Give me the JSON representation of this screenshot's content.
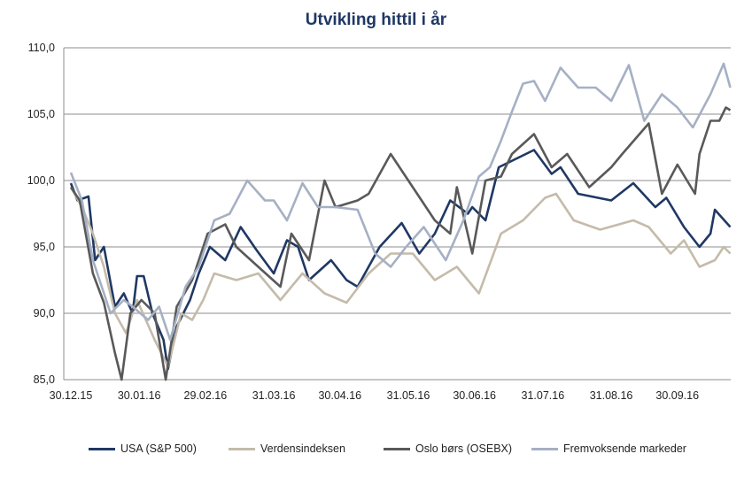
{
  "chart_data": {
    "type": "line",
    "title": "Utvikling hittil i år",
    "xlabel": "",
    "ylabel": "",
    "ylim": [
      85,
      110
    ],
    "yticks": [
      "85,0",
      "90,0",
      "95,0",
      "100,0",
      "105,0",
      "110,0"
    ],
    "ytick_values": [
      85,
      90,
      95,
      100,
      105,
      110
    ],
    "xlim_days": [
      0,
      299
    ],
    "xticks": [
      {
        "label": "30.12.15",
        "day": 0
      },
      {
        "label": "30.01.16",
        "day": 31
      },
      {
        "label": "29.02.16",
        "day": 61
      },
      {
        "label": "31.03.16",
        "day": 92
      },
      {
        "label": "30.04.16",
        "day": 122
      },
      {
        "label": "31.05.16",
        "day": 153
      },
      {
        "label": "30.06.16",
        "day": 183
      },
      {
        "label": "31.07.16",
        "day": 214
      },
      {
        "label": "31.08.16",
        "day": 245
      },
      {
        "label": "30.09.16",
        "day": 275
      }
    ],
    "grid": "horizontal",
    "legend_position": "bottom",
    "series": [
      {
        "name": "USA (S&P 500)",
        "color": "#1f3864",
        "x": [
          0,
          3,
          8,
          11,
          15,
          20,
          24,
          28,
          30,
          33,
          37,
          42,
          44,
          48,
          54,
          58,
          63,
          70,
          77,
          84,
          92,
          98,
          103,
          108,
          118,
          125,
          130,
          140,
          150,
          158,
          165,
          172,
          180,
          182,
          188,
          194,
          210,
          218,
          222,
          230,
          245,
          255,
          265,
          270,
          278,
          285,
          290,
          292,
          299
        ],
        "y": [
          99.8,
          98.5,
          98.8,
          94,
          95,
          90.5,
          91.5,
          90,
          92.8,
          92.8,
          90,
          88,
          85.8,
          89,
          91,
          93,
          95,
          94,
          96.5,
          94.8,
          93,
          95.5,
          95,
          92.5,
          94,
          92.5,
          92,
          95,
          96.8,
          94.5,
          96,
          98.5,
          97.5,
          98,
          97,
          101,
          102.3,
          100.5,
          101,
          99,
          98.5,
          99.8,
          98,
          98.7,
          96.5,
          95,
          96,
          97.8,
          96.5
        ]
      },
      {
        "name": "Verdensindeksen",
        "color": "#c4bbaa",
        "x": [
          0,
          5,
          10,
          15,
          20,
          25,
          30,
          38,
          44,
          50,
          55,
          60,
          65,
          75,
          85,
          95,
          105,
          115,
          125,
          135,
          145,
          155,
          165,
          175,
          185,
          195,
          205,
          215,
          220,
          228,
          240,
          255,
          262,
          272,
          278,
          285,
          292,
          296,
          299
        ],
        "y": [
          99.5,
          98,
          96,
          93.5,
          90,
          88.5,
          91,
          88,
          86,
          90,
          89.5,
          91,
          93,
          92.5,
          93,
          91,
          93,
          91.5,
          90.8,
          93,
          94.5,
          94.5,
          92.5,
          93.5,
          91.5,
          96,
          97,
          98.7,
          99,
          97,
          96.3,
          97,
          96.5,
          94.5,
          95.5,
          93.5,
          94,
          95,
          94.5
        ]
      },
      {
        "name": "Oslo børs (OSEBX)",
        "color": "#595959",
        "x": [
          0,
          4,
          10,
          15,
          20,
          23,
          27,
          32,
          38,
          43,
          48,
          55,
          62,
          70,
          75,
          85,
          95,
          100,
          108,
          115,
          120,
          130,
          135,
          145,
          155,
          165,
          172,
          175,
          182,
          188,
          195,
          200,
          210,
          218,
          225,
          235,
          245,
          250,
          262,
          268,
          275,
          283,
          285,
          290,
          294,
          297,
          299
        ],
        "y": [
          99.5,
          98.5,
          93,
          90.8,
          87,
          85,
          90,
          91,
          90,
          85,
          90.5,
          92.5,
          96,
          96.7,
          95,
          93.5,
          92,
          96,
          94,
          100,
          98,
          98.5,
          99,
          102,
          99.5,
          97,
          96,
          99.5,
          94.5,
          100,
          100.3,
          102,
          103.5,
          101,
          102,
          99.5,
          101,
          102,
          104.3,
          99,
          101.2,
          99,
          102,
          104.5,
          104.5,
          105.5,
          105.3
        ]
      },
      {
        "name": "Fremvoksende markeder",
        "color": "#a6b0c4",
        "x": [
          0,
          5,
          10,
          18,
          24,
          28,
          35,
          40,
          45,
          52,
          58,
          65,
          72,
          80,
          88,
          92,
          98,
          105,
          112,
          120,
          130,
          138,
          145,
          152,
          160,
          170,
          178,
          185,
          190,
          195,
          200,
          205,
          210,
          215,
          222,
          230,
          238,
          245,
          253,
          260,
          268,
          275,
          282,
          290,
          296,
          299
        ],
        "y": [
          100.6,
          98.5,
          94,
          90,
          91,
          90.5,
          89.5,
          90.5,
          88,
          92,
          93.5,
          97,
          97.5,
          100,
          98.5,
          98.5,
          97,
          99.8,
          98,
          98,
          97.8,
          94.5,
          93.5,
          95,
          96.5,
          94,
          97,
          100.3,
          101,
          103,
          105.2,
          107.3,
          107.5,
          106,
          108.5,
          107,
          107,
          106,
          108.7,
          104.5,
          106.5,
          105.5,
          104,
          106.5,
          108.8,
          107
        ]
      }
    ]
  }
}
